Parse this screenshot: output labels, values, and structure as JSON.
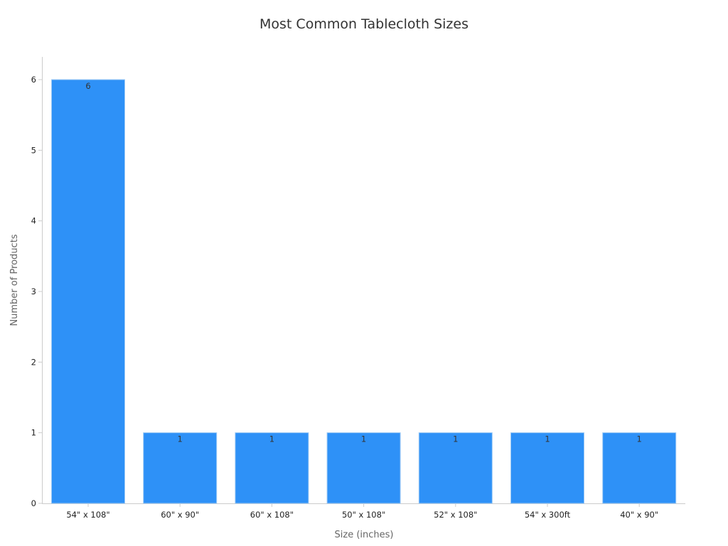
{
  "chart_data": {
    "type": "bar",
    "title": "Most Common Tablecloth Sizes",
    "xlabel": "Size (inches)",
    "ylabel": "Number of Products",
    "categories": [
      "54\" x 108\"",
      "60\" x 90\"",
      "60\" x 108\"",
      "50\" x 108\"",
      "52\" x 108\"",
      "54\" x 300ft",
      "40\" x 90\""
    ],
    "values": [
      6,
      1,
      1,
      1,
      1,
      1,
      1
    ],
    "ylim": [
      0,
      6.3
    ],
    "yticks": [
      0,
      1,
      2,
      3,
      4,
      5,
      6
    ],
    "data_labels": true,
    "grid": false,
    "colors": {
      "bar": "#2e91f7",
      "bar_edge": "#9cc9f5",
      "axis": "#cccccc",
      "title": "#333333",
      "axis_label": "#666666",
      "tick_label": "#222222"
    }
  }
}
